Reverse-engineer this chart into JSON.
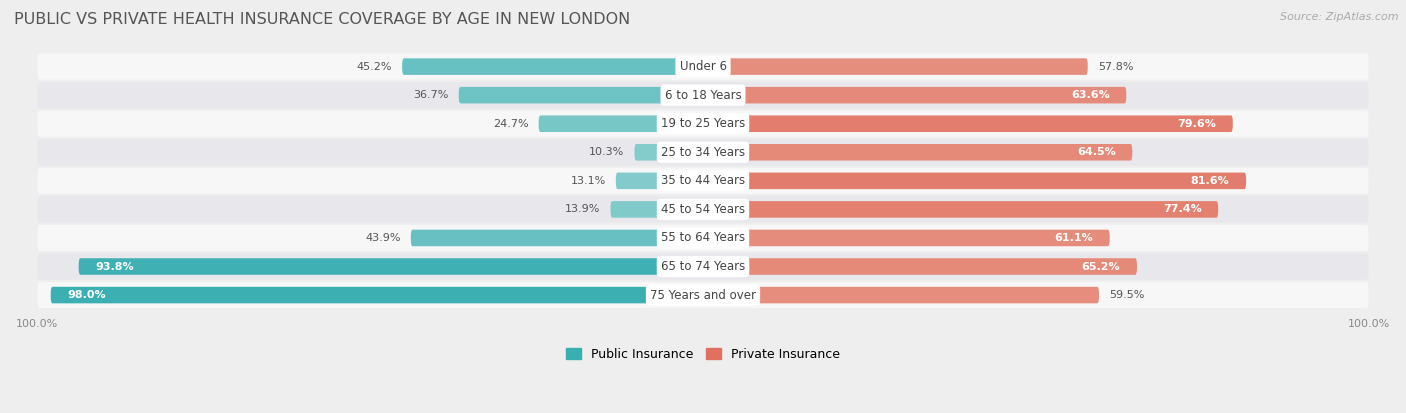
{
  "title": "PUBLIC VS PRIVATE HEALTH INSURANCE COVERAGE BY AGE IN NEW LONDON",
  "source": "Source: ZipAtlas.com",
  "categories": [
    "Under 6",
    "6 to 18 Years",
    "19 to 25 Years",
    "25 to 34 Years",
    "35 to 44 Years",
    "45 to 54 Years",
    "55 to 64 Years",
    "65 to 74 Years",
    "75 Years and over"
  ],
  "public_values": [
    45.2,
    36.7,
    24.7,
    10.3,
    13.1,
    13.9,
    43.9,
    93.8,
    98.0
  ],
  "private_values": [
    57.8,
    63.6,
    79.6,
    64.5,
    81.6,
    77.4,
    61.1,
    65.2,
    59.5
  ],
  "public_color_full": "#3aafb2",
  "public_color_light": "#8dcfcf",
  "private_color_full": "#e07060",
  "private_color_light": "#f0b8a8",
  "bg_color": "#eeeeee",
  "row_bg_light": "#f7f7f7",
  "row_bg_dark": "#e8e8ec",
  "max_value": 100.0,
  "title_fontsize": 11.5,
  "label_fontsize": 8.5,
  "value_fontsize": 8.0,
  "legend_fontsize": 9,
  "source_fontsize": 8
}
